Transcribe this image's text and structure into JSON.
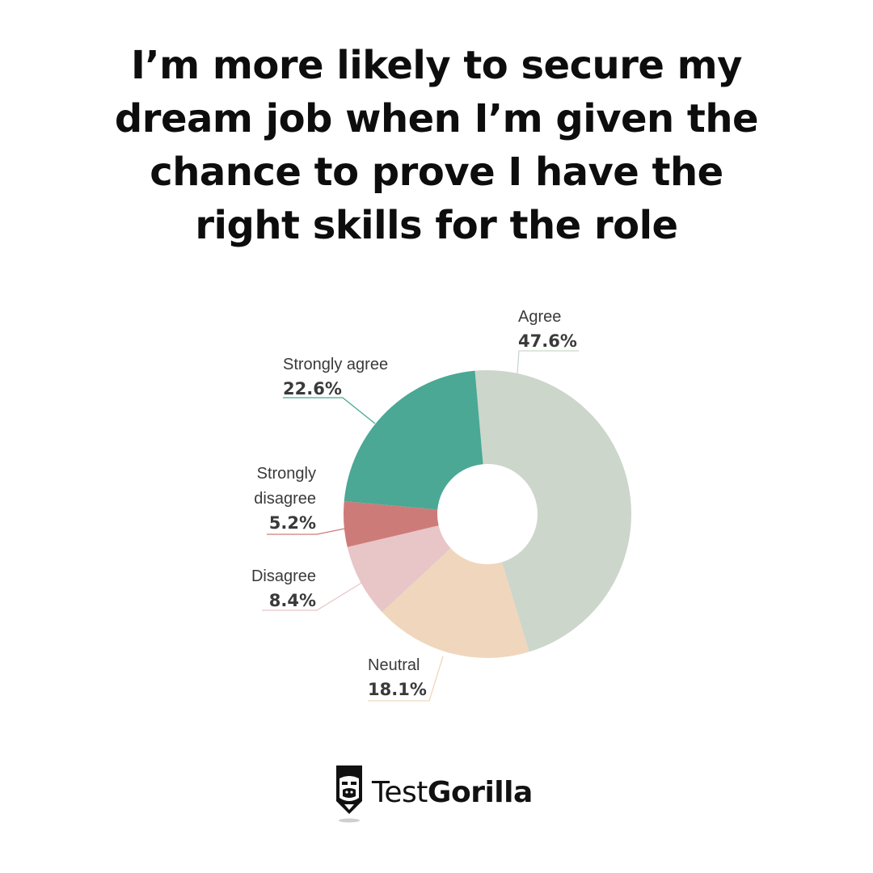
{
  "title_lines": [
    "I’m more likely to secure my",
    "dream job when I’m given the",
    "chance to prove I have the",
    "right skills for the role"
  ],
  "chart_data": {
    "type": "pie",
    "title": "I’m more likely to secure my dream job when I’m given the chance to prove I have the right skills for the role",
    "donut": true,
    "series": [
      {
        "values": [
          47.6,
          18.1,
          8.4,
          5.2,
          22.6
        ],
        "labels": [
          "Agree",
          "Neutral",
          "Disagree",
          "Strongly disagree",
          "Strongly agree"
        ],
        "value_labels": [
          "47.6%",
          "18.1%",
          "8.4%",
          "5.2%",
          "22.6%"
        ],
        "colors": [
          "#ccd6cb",
          "#f0d6bc",
          "#e8c5c7",
          "#cd7b79",
          "#4aa895"
        ]
      }
    ]
  },
  "brand": {
    "name_light": "Test",
    "name_bold": "Gorilla"
  }
}
